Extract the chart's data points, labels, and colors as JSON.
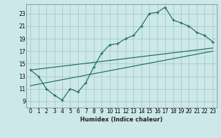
{
  "xlabel": "Humidex (Indice chaleur)",
  "bg_color": "#cce8e8",
  "grid_color": "#aac8c8",
  "line_color": "#1a6b5a",
  "xlim": [
    -0.5,
    23.5
  ],
  "ylim": [
    8.0,
    24.5
  ],
  "xticks": [
    0,
    1,
    2,
    3,
    4,
    5,
    6,
    7,
    8,
    9,
    10,
    11,
    12,
    13,
    14,
    15,
    16,
    17,
    18,
    19,
    20,
    21,
    22,
    23
  ],
  "yticks": [
    9,
    11,
    13,
    15,
    17,
    19,
    21,
    23
  ],
  "main_x": [
    0,
    1,
    2,
    3,
    4,
    5,
    6,
    7,
    8,
    9,
    10,
    11,
    12,
    13,
    14,
    15,
    16,
    17,
    18,
    19,
    20,
    21,
    22,
    23
  ],
  "main_y": [
    14,
    13,
    11,
    10,
    9.2,
    11,
    10.5,
    12,
    14.5,
    16.7,
    18,
    18.2,
    19,
    19.5,
    21,
    23,
    23.2,
    24,
    22,
    21.5,
    21,
    20,
    19.5,
    18.5
  ],
  "line1_x": [
    0,
    23
  ],
  "line1_y": [
    14.0,
    17.5
  ],
  "line2_x": [
    0,
    23
  ],
  "line2_y": [
    11.5,
    17.0
  ]
}
